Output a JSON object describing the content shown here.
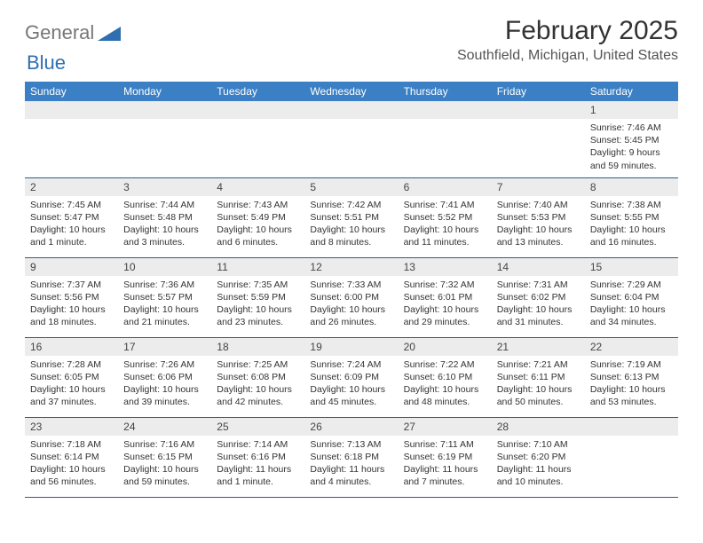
{
  "brand": {
    "part1": "General",
    "part2": "Blue"
  },
  "title": "February 2025",
  "location": "Southfield, Michigan, United States",
  "header_bg": "#3b7fc4",
  "header_fg": "#ffffff",
  "daynum_bg": "#ececec",
  "row_border": "#2c5d8f",
  "logo_triangle_color": "#2f6fb0",
  "dow": [
    "Sunday",
    "Monday",
    "Tuesday",
    "Wednesday",
    "Thursday",
    "Friday",
    "Saturday"
  ],
  "weeks": [
    [
      {
        "n": "",
        "sr": "",
        "ss": "",
        "dl": ""
      },
      {
        "n": "",
        "sr": "",
        "ss": "",
        "dl": ""
      },
      {
        "n": "",
        "sr": "",
        "ss": "",
        "dl": ""
      },
      {
        "n": "",
        "sr": "",
        "ss": "",
        "dl": ""
      },
      {
        "n": "",
        "sr": "",
        "ss": "",
        "dl": ""
      },
      {
        "n": "",
        "sr": "",
        "ss": "",
        "dl": ""
      },
      {
        "n": "1",
        "sr": "Sunrise: 7:46 AM",
        "ss": "Sunset: 5:45 PM",
        "dl": "Daylight: 9 hours and 59 minutes."
      }
    ],
    [
      {
        "n": "2",
        "sr": "Sunrise: 7:45 AM",
        "ss": "Sunset: 5:47 PM",
        "dl": "Daylight: 10 hours and 1 minute."
      },
      {
        "n": "3",
        "sr": "Sunrise: 7:44 AM",
        "ss": "Sunset: 5:48 PM",
        "dl": "Daylight: 10 hours and 3 minutes."
      },
      {
        "n": "4",
        "sr": "Sunrise: 7:43 AM",
        "ss": "Sunset: 5:49 PM",
        "dl": "Daylight: 10 hours and 6 minutes."
      },
      {
        "n": "5",
        "sr": "Sunrise: 7:42 AM",
        "ss": "Sunset: 5:51 PM",
        "dl": "Daylight: 10 hours and 8 minutes."
      },
      {
        "n": "6",
        "sr": "Sunrise: 7:41 AM",
        "ss": "Sunset: 5:52 PM",
        "dl": "Daylight: 10 hours and 11 minutes."
      },
      {
        "n": "7",
        "sr": "Sunrise: 7:40 AM",
        "ss": "Sunset: 5:53 PM",
        "dl": "Daylight: 10 hours and 13 minutes."
      },
      {
        "n": "8",
        "sr": "Sunrise: 7:38 AM",
        "ss": "Sunset: 5:55 PM",
        "dl": "Daylight: 10 hours and 16 minutes."
      }
    ],
    [
      {
        "n": "9",
        "sr": "Sunrise: 7:37 AM",
        "ss": "Sunset: 5:56 PM",
        "dl": "Daylight: 10 hours and 18 minutes."
      },
      {
        "n": "10",
        "sr": "Sunrise: 7:36 AM",
        "ss": "Sunset: 5:57 PM",
        "dl": "Daylight: 10 hours and 21 minutes."
      },
      {
        "n": "11",
        "sr": "Sunrise: 7:35 AM",
        "ss": "Sunset: 5:59 PM",
        "dl": "Daylight: 10 hours and 23 minutes."
      },
      {
        "n": "12",
        "sr": "Sunrise: 7:33 AM",
        "ss": "Sunset: 6:00 PM",
        "dl": "Daylight: 10 hours and 26 minutes."
      },
      {
        "n": "13",
        "sr": "Sunrise: 7:32 AM",
        "ss": "Sunset: 6:01 PM",
        "dl": "Daylight: 10 hours and 29 minutes."
      },
      {
        "n": "14",
        "sr": "Sunrise: 7:31 AM",
        "ss": "Sunset: 6:02 PM",
        "dl": "Daylight: 10 hours and 31 minutes."
      },
      {
        "n": "15",
        "sr": "Sunrise: 7:29 AM",
        "ss": "Sunset: 6:04 PM",
        "dl": "Daylight: 10 hours and 34 minutes."
      }
    ],
    [
      {
        "n": "16",
        "sr": "Sunrise: 7:28 AM",
        "ss": "Sunset: 6:05 PM",
        "dl": "Daylight: 10 hours and 37 minutes."
      },
      {
        "n": "17",
        "sr": "Sunrise: 7:26 AM",
        "ss": "Sunset: 6:06 PM",
        "dl": "Daylight: 10 hours and 39 minutes."
      },
      {
        "n": "18",
        "sr": "Sunrise: 7:25 AM",
        "ss": "Sunset: 6:08 PM",
        "dl": "Daylight: 10 hours and 42 minutes."
      },
      {
        "n": "19",
        "sr": "Sunrise: 7:24 AM",
        "ss": "Sunset: 6:09 PM",
        "dl": "Daylight: 10 hours and 45 minutes."
      },
      {
        "n": "20",
        "sr": "Sunrise: 7:22 AM",
        "ss": "Sunset: 6:10 PM",
        "dl": "Daylight: 10 hours and 48 minutes."
      },
      {
        "n": "21",
        "sr": "Sunrise: 7:21 AM",
        "ss": "Sunset: 6:11 PM",
        "dl": "Daylight: 10 hours and 50 minutes."
      },
      {
        "n": "22",
        "sr": "Sunrise: 7:19 AM",
        "ss": "Sunset: 6:13 PM",
        "dl": "Daylight: 10 hours and 53 minutes."
      }
    ],
    [
      {
        "n": "23",
        "sr": "Sunrise: 7:18 AM",
        "ss": "Sunset: 6:14 PM",
        "dl": "Daylight: 10 hours and 56 minutes."
      },
      {
        "n": "24",
        "sr": "Sunrise: 7:16 AM",
        "ss": "Sunset: 6:15 PM",
        "dl": "Daylight: 10 hours and 59 minutes."
      },
      {
        "n": "25",
        "sr": "Sunrise: 7:14 AM",
        "ss": "Sunset: 6:16 PM",
        "dl": "Daylight: 11 hours and 1 minute."
      },
      {
        "n": "26",
        "sr": "Sunrise: 7:13 AM",
        "ss": "Sunset: 6:18 PM",
        "dl": "Daylight: 11 hours and 4 minutes."
      },
      {
        "n": "27",
        "sr": "Sunrise: 7:11 AM",
        "ss": "Sunset: 6:19 PM",
        "dl": "Daylight: 11 hours and 7 minutes."
      },
      {
        "n": "28",
        "sr": "Sunrise: 7:10 AM",
        "ss": "Sunset: 6:20 PM",
        "dl": "Daylight: 11 hours and 10 minutes."
      },
      {
        "n": "",
        "sr": "",
        "ss": "",
        "dl": ""
      }
    ]
  ]
}
